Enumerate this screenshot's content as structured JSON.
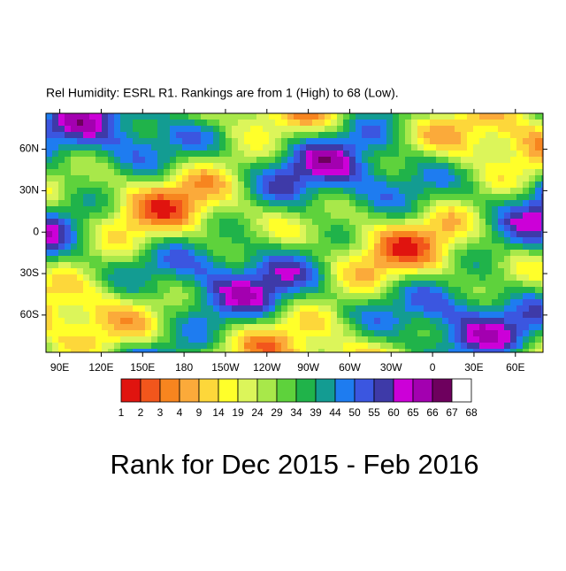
{
  "map": {
    "title": "Rel Humidity: ESRL R1. Rankings are from 1 (High) to 68 (Low).",
    "caption": "Rank for Dec 2015 - Feb 2016",
    "xlim": [
      80,
      440
    ],
    "ylim": [
      -87,
      86
    ],
    "xticks": [
      {
        "value": 90,
        "label": "90E"
      },
      {
        "value": 120,
        "label": "120E"
      },
      {
        "value": 150,
        "label": "150E"
      },
      {
        "value": 180,
        "label": "180"
      },
      {
        "value": -150,
        "label": "150W"
      },
      {
        "value": -120,
        "label": "120W"
      },
      {
        "value": -90,
        "label": "90W"
      },
      {
        "value": -60,
        "label": "60W"
      },
      {
        "value": -30,
        "label": "30W"
      },
      {
        "value": 0,
        "label": "0"
      },
      {
        "value": 30,
        "label": "30E"
      },
      {
        "value": 60,
        "label": "60E"
      }
    ],
    "yticks": [
      {
        "value": 60,
        "label": "60N"
      },
      {
        "value": 30,
        "label": "30N"
      },
      0,
      {
        "value": -30,
        "label": "30S"
      },
      {
        "value": -60,
        "label": "60S"
      }
    ],
    "colorbar": {
      "levels": [
        1,
        2,
        3,
        4,
        9,
        14,
        19,
        24,
        29,
        34,
        39,
        44,
        50,
        55,
        60,
        65,
        66,
        67,
        68
      ],
      "colors": [
        "#e0140f",
        "#f2561c",
        "#f7851f",
        "#fbaa3a",
        "#fdd73a",
        "#ffff2a",
        "#dcf55a",
        "#a8e84a",
        "#5ed23c",
        "#20b34a",
        "#139c92",
        "#1e7cf0",
        "#3b56e0",
        "#3e3aa8",
        "#cc00d8",
        "#a300b0",
        "#6e005e",
        "#ffffff"
      ]
    }
  }
}
